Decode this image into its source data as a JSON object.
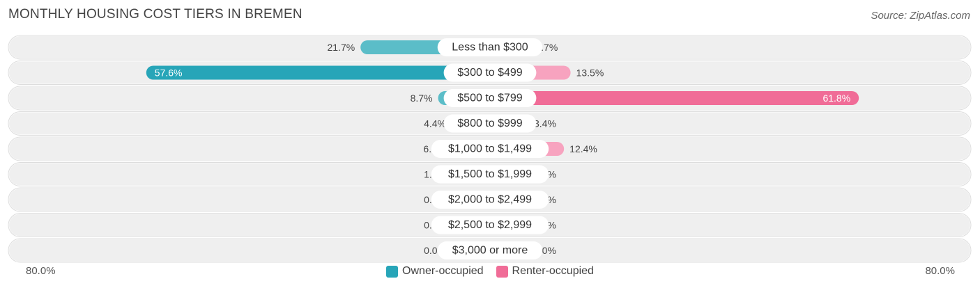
{
  "title": "MONTHLY HOUSING COST TIERS IN BREMEN",
  "source": "Source: ZipAtlas.com",
  "colors": {
    "owner": "#5bbdc8",
    "owner_strong": "#27a5b8",
    "renter": "#f7a3bf",
    "renter_strong": "#f06c97",
    "row_bg": "#efefef"
  },
  "chart_data": {
    "type": "bar",
    "orientation": "horizontal-diverging",
    "categories": [
      "Less than $300",
      "$300 to $499",
      "$500 to $799",
      "$800 to $999",
      "$1,000 to $1,499",
      "$1,500 to $1,999",
      "$2,000 to $2,499",
      "$2,500 to $2,999",
      "$3,000 or more"
    ],
    "series": [
      {
        "name": "Owner-occupied",
        "values": [
          21.7,
          57.6,
          8.7,
          4.4,
          6.5,
          1.1,
          0.0,
          0.0,
          0.0
        ]
      },
      {
        "name": "Renter-occupied",
        "values": [
          6.7,
          13.5,
          61.8,
          3.4,
          12.4,
          0.0,
          0.0,
          0.0,
          0.0
        ]
      }
    ],
    "value_labels": {
      "owner": [
        "21.7%",
        "57.6%",
        "8.7%",
        "4.4%",
        "6.5%",
        "1.1%",
        "0.0%",
        "0.0%",
        "0.0%"
      ],
      "renter": [
        "6.7%",
        "13.5%",
        "61.8%",
        "3.4%",
        "12.4%",
        "0.0%",
        "0.0%",
        "0.0%",
        "0.0%"
      ]
    },
    "xlim": [
      -80,
      80
    ],
    "axis_labels": {
      "left": "80.0%",
      "right": "80.0%"
    },
    "legend": [
      "Owner-occupied",
      "Renter-occupied"
    ],
    "legend_position": "bottom-center",
    "grid": false
  }
}
